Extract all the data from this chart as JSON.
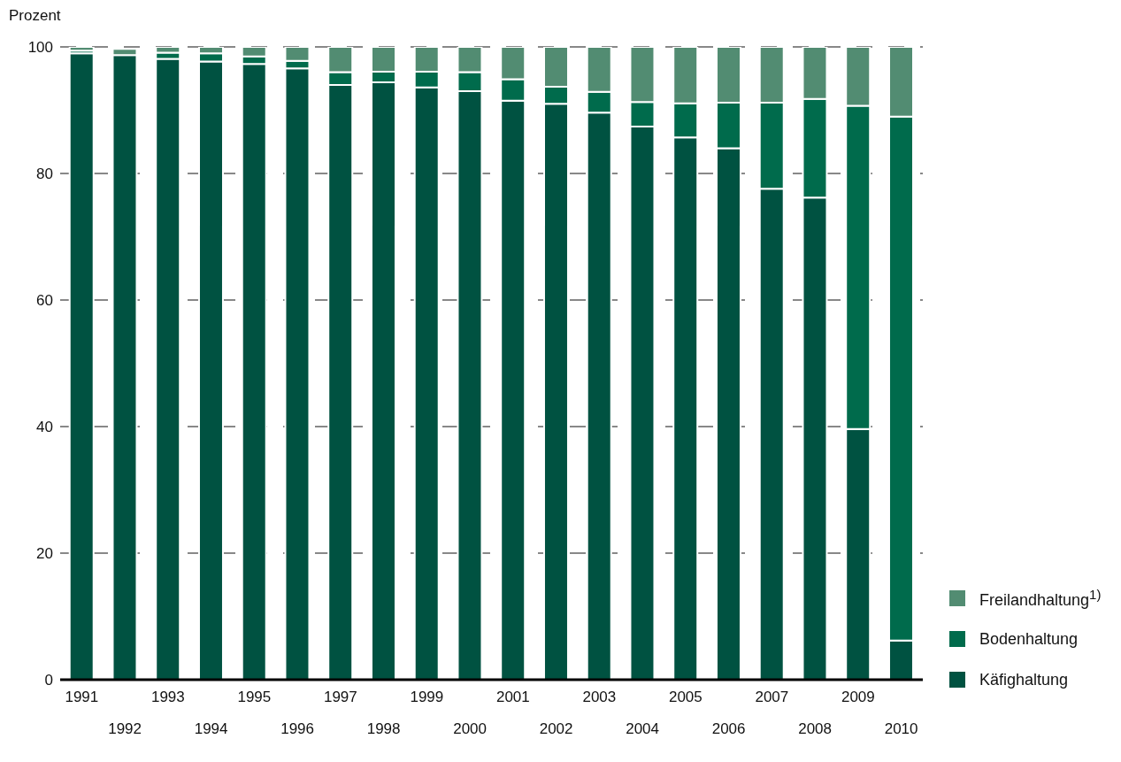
{
  "chart_data": {
    "type": "bar",
    "stacked": true,
    "ylabel": "Prozent",
    "categories": [
      "1991",
      "1992",
      "1993",
      "1994",
      "1995",
      "1996",
      "1997",
      "1998",
      "1999",
      "2000",
      "2001",
      "2002",
      "2003",
      "2004",
      "2005",
      "2006",
      "2007",
      "2008",
      "2009",
      "2010"
    ],
    "series": [
      {
        "name": "Käfighaltung",
        "color": "#005241",
        "values": [
          99.0,
          98.7,
          98.1,
          97.7,
          97.3,
          96.6,
          94.0,
          94.4,
          93.6,
          93.0,
          91.5,
          91.0,
          89.6,
          87.4,
          85.7,
          84.0,
          77.6,
          76.2,
          39.6,
          6.2
        ]
      },
      {
        "name": "Bodenhaltung",
        "color": "#006b4c",
        "values": [
          0.4,
          null,
          1.0,
          1.3,
          1.2,
          1.2,
          2.0,
          1.7,
          2.5,
          3.0,
          3.4,
          2.7,
          3.3,
          3.9,
          5.4,
          7.2,
          13.6,
          15.6,
          51.1,
          82.8
        ]
      },
      {
        "name": "Freilandhaltung$^{1)}$",
        "color": "#528c72",
        "values": [
          0.6,
          1.0,
          0.9,
          1.0,
          1.5,
          2.2,
          4.0,
          3.9,
          3.9,
          4.0,
          5.1,
          6.3,
          7.1,
          8.7,
          8.9,
          8.8,
          8.8,
          8.2,
          9.3,
          11.0
        ]
      }
    ],
    "ylim": [
      0,
      100
    ],
    "yticks": [
      0,
      20,
      40,
      60,
      80,
      100
    ],
    "grid": "y",
    "legend": "bottom right"
  }
}
